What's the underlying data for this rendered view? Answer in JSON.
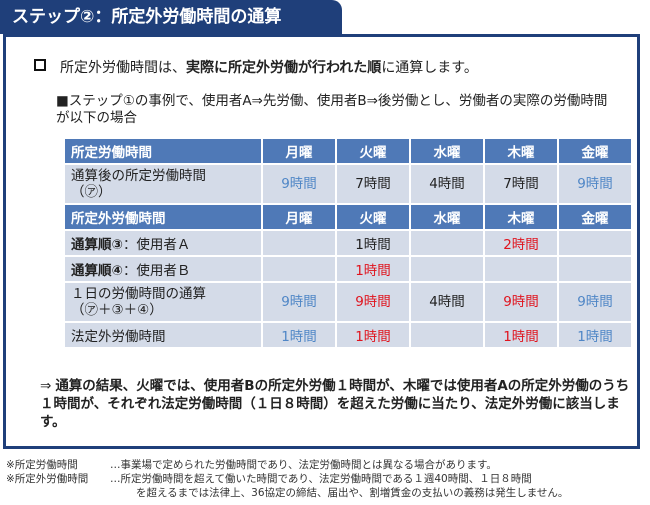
{
  "header": {
    "title": "ステップ②：所定外労働時間の通算"
  },
  "point": {
    "prefix": "所定外労働時間は、",
    "emphasis": "実際に所定外労働が行われた順",
    "suffix": "に通算します。"
  },
  "sub_point": {
    "text": "■ステップ①の事例で、使用者A⇒先労働、使用者B⇒後労働とし、労働者の実際の労働時間が以下の場合"
  },
  "table": {
    "section1_header": {
      "label": "所定労働時間",
      "days": [
        "月曜",
        "火曜",
        "水曜",
        "木曜",
        "金曜"
      ]
    },
    "row_total_scheduled": {
      "label_line1": "通算後の所定労働時間",
      "label_line2": "（㋐）",
      "values": [
        "9時間",
        "7時間",
        "4時間",
        "7時間",
        "9時間"
      ]
    },
    "section2_header": {
      "label": "所定外労働時間",
      "days": [
        "月曜",
        "火曜",
        "水曜",
        "木曜",
        "金曜"
      ]
    },
    "row_a": {
      "label_bold": "通算順③",
      "label_rest": "：使用者Ａ",
      "values": [
        "",
        "1時間",
        "",
        "2時間",
        ""
      ]
    },
    "row_b": {
      "label_bold": "通算順④",
      "label_rest": "：使用者Ｂ",
      "values": [
        "",
        "1時間",
        "",
        "",
        ""
      ]
    },
    "row_daily": {
      "label_line1": "１日の労働時間の通算",
      "label_line2": "（㋐＋③＋④）",
      "values": [
        "9時間",
        "9時間",
        "4時間",
        "9時間",
        "9時間"
      ]
    },
    "row_statutory": {
      "label": "法定外労働時間",
      "values": [
        "1時間",
        "1時間",
        "",
        "1時間",
        "1時間"
      ]
    }
  },
  "conclusion": {
    "arrow": "⇒",
    "text": "通算の結果、火曜では、使用者Bの所定外労働１時間が、木曜では使用者Aの所定外労働のうち１時間が、それぞれ法定労働時間（１日８時間）を超えた労働に当たり、法定外労働に該当します。"
  },
  "footnotes": [
    {
      "term": "※所定労働時間",
      "desc": "…事業場で定められた労働時間であり、法定労働時間とは異なる場合があります。",
      "cont": ""
    },
    {
      "term": "※所定外労働時間",
      "desc": "…所定労働時間を超えて働いた時間であり、法定労働時間である１週40時間、１日８時間",
      "cont": "を超えるまでは法律上、36協定の締結、届出や、割増賃金の支払いの義務は発生しません。"
    }
  ],
  "colors": {
    "navy": "#1f3f7a",
    "header_blue": "#4f79b7",
    "cell_fill": "#d4dbe8",
    "value_blue": "#4f86c6",
    "value_red": "#e0141e"
  }
}
